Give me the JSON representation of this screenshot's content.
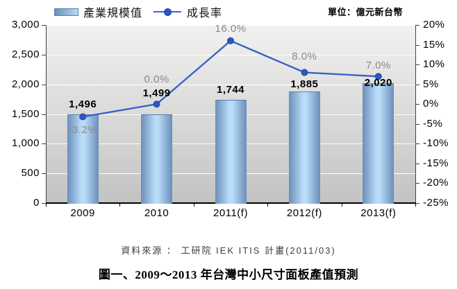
{
  "unit_label": "單位：億元新台幣",
  "source_text": "資料來源 ： 工研院 IEK ITIS 計畫(2011/03)",
  "caption": "圖一、2009～2013 年台灣中小尺寸面板產值預測",
  "colors": {
    "bar_edge": "#6a8eb9",
    "bar_highlight": "#b9dcf8",
    "bar_border": "#5a7da6",
    "line": "#3a62c8",
    "marker_fill": "#2f55c2",
    "marker_stroke": "#26479b",
    "plot_bg_top": "#f1f1ef",
    "plot_bg_bottom": "#c3c3c3",
    "gridline": "#ffffff",
    "pct_label": "#8a8a8a",
    "value_label": "#000000"
  },
  "chart_data": {
    "type": "bar",
    "subtype": "bar-line-combo",
    "title": "圖一、2009～2013 年台灣中小尺寸面板產值預測",
    "categories": [
      "2009",
      "2010",
      "2011(f)",
      "2012(f)",
      "2013(f)"
    ],
    "series": [
      {
        "name": "產業規模值",
        "type": "bar",
        "axis": "left",
        "values": [
          1496,
          1499,
          1744,
          1885,
          2020
        ],
        "labels": [
          "1,496",
          "1,499",
          "1,744",
          "1,885",
          "2,020"
        ],
        "label_dy": [
          0,
          -16,
          0,
          4,
          14
        ]
      },
      {
        "name": "成長率",
        "type": "line",
        "axis": "right",
        "values": [
          -3.2,
          0.0,
          16.0,
          8.0,
          7.0
        ],
        "labels": [
          "-3.2%",
          "0.0%",
          "16.0%",
          "8.0%",
          "7.0%"
        ],
        "label_positions": [
          "below",
          "above",
          "above",
          "above",
          "above"
        ],
        "label_dy": [
          0,
          -18,
          0,
          -6,
          2
        ]
      }
    ],
    "left_axis": {
      "min": 0,
      "max": 3000,
      "step": 500,
      "ticks": [
        "3,000",
        "2,500",
        "2,000",
        "1,500",
        "1,000",
        "500",
        "0"
      ]
    },
    "right_axis": {
      "min": -25,
      "max": 20,
      "step": 5,
      "ticks": [
        "20%",
        "15%",
        "10%",
        "5%",
        "0%",
        "-5%",
        "-10%",
        "-15%",
        "-20%",
        "-25%"
      ]
    },
    "grid": true,
    "legend_position": "top"
  }
}
